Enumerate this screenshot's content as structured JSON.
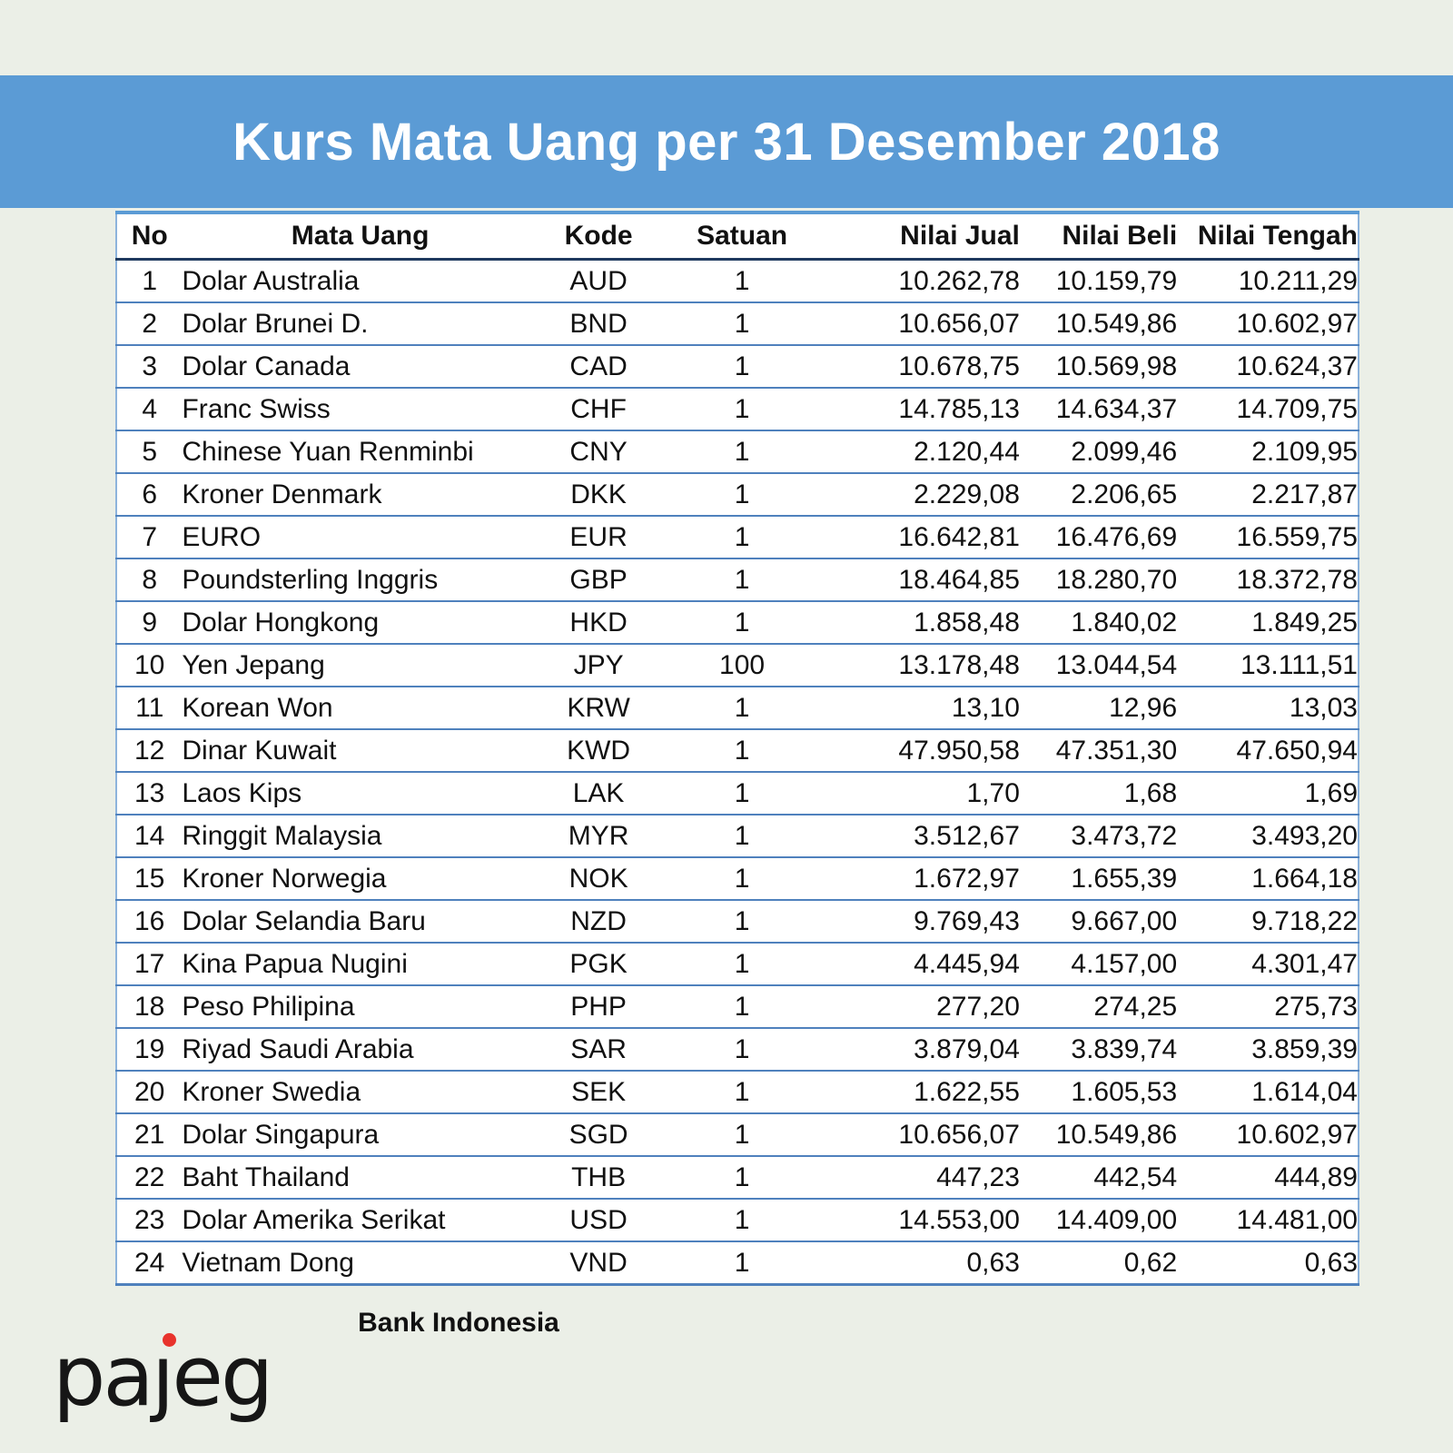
{
  "page": {
    "title": "Kurs Mata Uang per 31 Desember 2018",
    "banner_color": "#5b9bd5",
    "background_color": "#ebefe7",
    "source_label": "Bank Indonesia",
    "logo": {
      "name": "pajeg",
      "part1": "pa",
      "part2": "ȷ",
      "part3": "eg",
      "dot_color": "#e8332c",
      "text_color": "#161616"
    }
  },
  "chart_data": {
    "type": "table",
    "title": "Kurs Mata Uang per 31 Desember 2018",
    "source": "Bank Indonesia",
    "columns": [
      "No",
      "Mata Uang",
      "Kode",
      "Satuan",
      "Nilai Jual",
      "Nilai Beli",
      "Nilai Tengah"
    ],
    "rows": [
      {
        "no": "1",
        "name": "Dolar Australia",
        "code": "AUD",
        "unit": "1",
        "sell": "10.262,78",
        "buy": "10.159,79",
        "mid": "10.211,29"
      },
      {
        "no": "2",
        "name": "Dolar Brunei D.",
        "code": "BND",
        "unit": "1",
        "sell": "10.656,07",
        "buy": "10.549,86",
        "mid": "10.602,97"
      },
      {
        "no": "3",
        "name": "Dolar Canada",
        "code": "CAD",
        "unit": "1",
        "sell": "10.678,75",
        "buy": "10.569,98",
        "mid": "10.624,37"
      },
      {
        "no": "4",
        "name": "Franc Swiss",
        "code": "CHF",
        "unit": "1",
        "sell": "14.785,13",
        "buy": "14.634,37",
        "mid": "14.709,75"
      },
      {
        "no": "5",
        "name": "Chinese Yuan Renminbi",
        "code": "CNY",
        "unit": "1",
        "sell": "2.120,44",
        "buy": "2.099,46",
        "mid": "2.109,95"
      },
      {
        "no": "6",
        "name": "Kroner Denmark",
        "code": "DKK",
        "unit": "1",
        "sell": "2.229,08",
        "buy": "2.206,65",
        "mid": "2.217,87"
      },
      {
        "no": "7",
        "name": "EURO",
        "code": "EUR",
        "unit": "1",
        "sell": "16.642,81",
        "buy": "16.476,69",
        "mid": "16.559,75"
      },
      {
        "no": "8",
        "name": "Poundsterling Inggris",
        "code": "GBP",
        "unit": "1",
        "sell": "18.464,85",
        "buy": "18.280,70",
        "mid": "18.372,78"
      },
      {
        "no": "9",
        "name": "Dolar Hongkong",
        "code": "HKD",
        "unit": "1",
        "sell": "1.858,48",
        "buy": "1.840,02",
        "mid": "1.849,25"
      },
      {
        "no": "10",
        "name": "Yen Jepang",
        "code": "JPY",
        "unit": "100",
        "sell": "13.178,48",
        "buy": "13.044,54",
        "mid": "13.111,51"
      },
      {
        "no": "11",
        "name": "Korean Won",
        "code": "KRW",
        "unit": "1",
        "sell": "13,10",
        "buy": "12,96",
        "mid": "13,03"
      },
      {
        "no": "12",
        "name": "Dinar Kuwait",
        "code": "KWD",
        "unit": "1",
        "sell": "47.950,58",
        "buy": "47.351,30",
        "mid": "47.650,94"
      },
      {
        "no": "13",
        "name": "Laos Kips",
        "code": "LAK",
        "unit": "1",
        "sell": "1,70",
        "buy": "1,68",
        "mid": "1,69"
      },
      {
        "no": "14",
        "name": "Ringgit Malaysia",
        "code": "MYR",
        "unit": "1",
        "sell": "3.512,67",
        "buy": "3.473,72",
        "mid": "3.493,20"
      },
      {
        "no": "15",
        "name": "Kroner Norwegia",
        "code": "NOK",
        "unit": "1",
        "sell": "1.672,97",
        "buy": "1.655,39",
        "mid": "1.664,18"
      },
      {
        "no": "16",
        "name": "Dolar Selandia Baru",
        "code": "NZD",
        "unit": "1",
        "sell": "9.769,43",
        "buy": "9.667,00",
        "mid": "9.718,22"
      },
      {
        "no": "17",
        "name": "Kina Papua Nugini",
        "code": "PGK",
        "unit": "1",
        "sell": "4.445,94",
        "buy": "4.157,00",
        "mid": "4.301,47"
      },
      {
        "no": "18",
        "name": "Peso Philipina",
        "code": "PHP",
        "unit": "1",
        "sell": "277,20",
        "buy": "274,25",
        "mid": "275,73"
      },
      {
        "no": "19",
        "name": "Riyad Saudi Arabia",
        "code": "SAR",
        "unit": "1",
        "sell": "3.879,04",
        "buy": "3.839,74",
        "mid": "3.859,39"
      },
      {
        "no": "20",
        "name": "Kroner Swedia",
        "code": "SEK",
        "unit": "1",
        "sell": "1.622,55",
        "buy": "1.605,53",
        "mid": "1.614,04"
      },
      {
        "no": "21",
        "name": "Dolar Singapura",
        "code": "SGD",
        "unit": "1",
        "sell": "10.656,07",
        "buy": "10.549,86",
        "mid": "10.602,97"
      },
      {
        "no": "22",
        "name": "Baht Thailand",
        "code": "THB",
        "unit": "1",
        "sell": "447,23",
        "buy": "442,54",
        "mid": "444,89"
      },
      {
        "no": "23",
        "name": "Dolar Amerika Serikat",
        "code": "USD",
        "unit": "1",
        "sell": "14.553,00",
        "buy": "14.409,00",
        "mid": "14.481,00"
      },
      {
        "no": "24",
        "name": "Vietnam Dong",
        "code": "VND",
        "unit": "1",
        "sell": "0,63",
        "buy": "0,62",
        "mid": "0,63"
      }
    ]
  }
}
